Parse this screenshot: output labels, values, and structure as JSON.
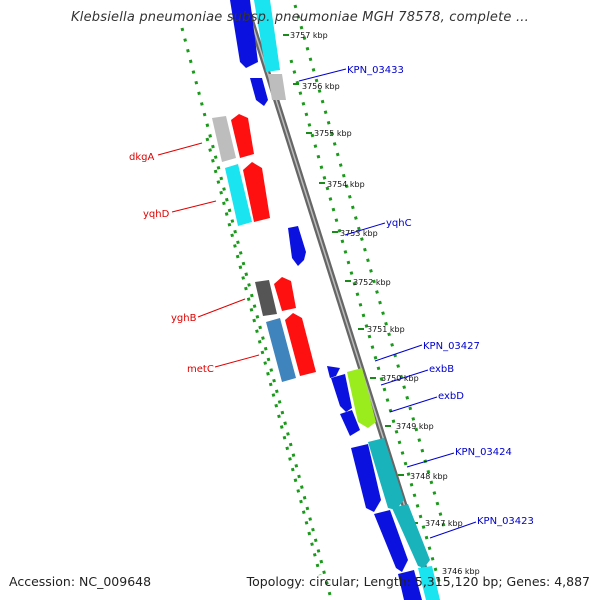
{
  "title": "Klebsiella pneumoniae subsp. pneumoniae MGH 78578, complete ...",
  "footer": {
    "accession": "Accession: NC_009648",
    "topology": "Topology: circular; Length: 5,315,120 bp; Genes: 4,887"
  },
  "ticks": [
    "3757 kbp",
    "3756 kbp",
    "3755 kbp",
    "3754 kbp",
    "3753 kbp",
    "3752 kbp",
    "3751 kbp",
    "3750 kbp",
    "3749 kbp",
    "3748 kbp",
    "3747 kbp",
    "3746 kbp"
  ],
  "left_labels": [
    "dkgA",
    "yqhD",
    "yghB",
    "metC"
  ],
  "right_labels": [
    "KPN_03433",
    "yqhC",
    "KPN_03427",
    "exbB",
    "exbD",
    "KPN_03424",
    "KPN_03423"
  ],
  "colors": {
    "label_left": "#e00000",
    "label_right": "#0000cc",
    "gene_blue": "#0b12e0",
    "gene_cyan": "#19e4ef",
    "gene_red": "#ff1010",
    "gene_gray": "#bdbdbd",
    "gene_dark": "#555555",
    "gene_steel": "#3f84bd",
    "gene_lime": "#9bec1d",
    "gene_teal": "#19b3bb",
    "dots": "#1a9a1a"
  }
}
